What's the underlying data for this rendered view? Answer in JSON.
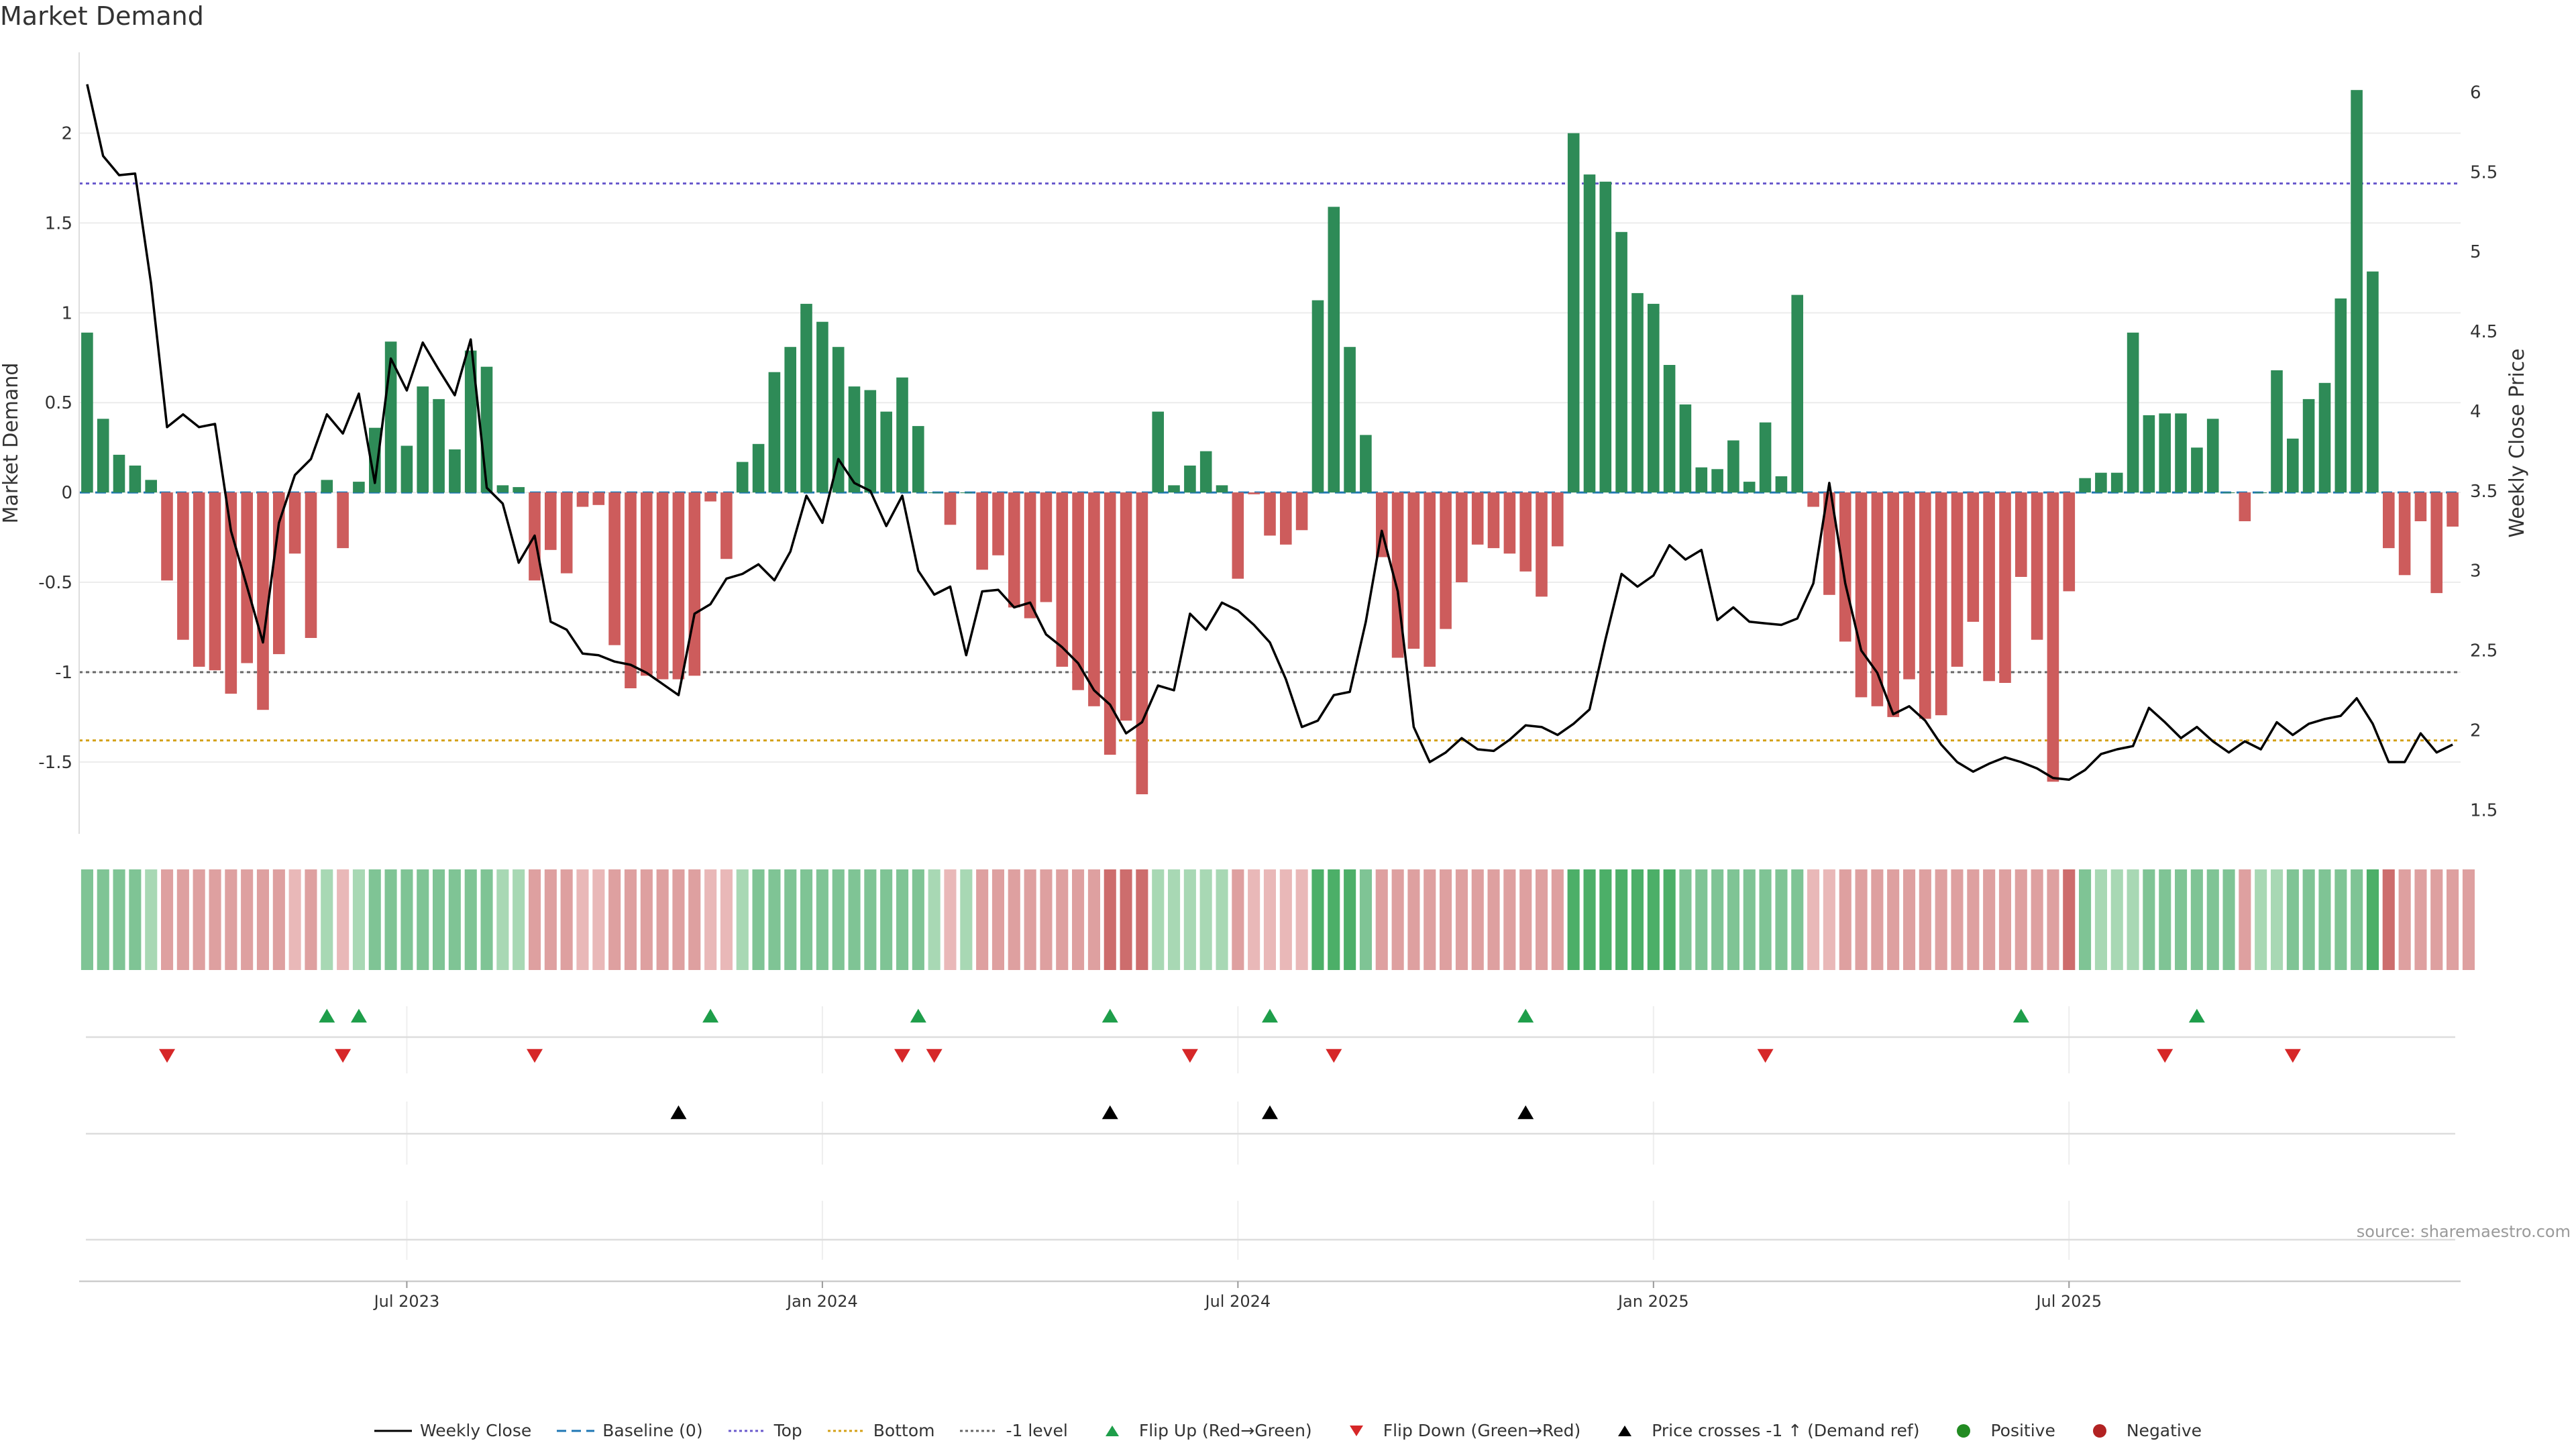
{
  "title": "Market Demand",
  "source": "source: sharemaestro.com",
  "colors": {
    "positive": "#2e8b57",
    "negative": "#cd5c5c",
    "line": "#000000",
    "top": "#6a5acd",
    "bottom": "#d4a017",
    "minus1": "#666666",
    "baseline": "#1f77b4",
    "flip_up": "#1e9e4a",
    "flip_down": "#d62728",
    "cross": "#000000",
    "dot_pos": "#228b22",
    "dot_neg": "#b22222"
  },
  "chart_data": {
    "type": "bar",
    "ylabel": "Market Demand",
    "y2label": "Weekly Close Price",
    "ylim": [
      -1.9,
      2.45
    ],
    "y2lim": [
      1.35,
      6.25
    ],
    "yticks": [
      "2",
      "1.5",
      "1",
      "0.5",
      "0",
      "-0.5",
      "-1",
      "-1.5"
    ],
    "ytick_values": [
      2,
      1.5,
      1,
      0.5,
      0,
      -0.5,
      -1,
      -1.5
    ],
    "y2ticks": [
      "6",
      "5.5",
      "5",
      "4.5",
      "4",
      "3.5",
      "3",
      "2.5",
      "2",
      "1.5"
    ],
    "y2tick_values": [
      6,
      5.5,
      5,
      4.5,
      4,
      3.5,
      3,
      2.5,
      2,
      1.5
    ],
    "xticks": [
      "Jul 2023",
      "Jan 2024",
      "Jul 2024",
      "Jan 2025",
      "Jul 2025"
    ],
    "xtick_week_index": [
      20.5,
      46.5,
      72.5,
      98.5,
      124.5
    ],
    "top_level": 1.72,
    "bottom_level": -1.38,
    "minus1_level": -1,
    "demand": [
      0.89,
      0.41,
      0.21,
      0.15,
      0.07,
      -0.49,
      -0.82,
      -0.97,
      -0.99,
      -1.12,
      -0.95,
      -1.21,
      -0.9,
      -0.34,
      -0.81,
      0.07,
      -0.31,
      0.06,
      0.36,
      0.84,
      0.26,
      0.59,
      0.52,
      0.24,
      0.79,
      0.7,
      0.04,
      0.03,
      -0.49,
      -0.32,
      -0.45,
      -0.08,
      -0.07,
      -0.85,
      -1.09,
      -1.02,
      -1.04,
      -1.04,
      -1.02,
      -0.05,
      -0.37,
      0.17,
      0.27,
      0.67,
      0.81,
      1.05,
      0.95,
      0.81,
      0.59,
      0.57,
      0.45,
      0.64,
      0.37,
      0.0,
      -0.18,
      0.0,
      -0.43,
      -0.35,
      -0.64,
      -0.7,
      -0.61,
      -0.97,
      -1.1,
      -1.19,
      -1.46,
      -1.27,
      -1.68,
      0.45,
      0.04,
      0.15,
      0.23,
      0.04,
      -0.48,
      -0.01,
      -0.24,
      -0.29,
      -0.21,
      1.07,
      1.59,
      0.81,
      0.32,
      -0.36,
      -0.92,
      -0.87,
      -0.97,
      -0.76,
      -0.5,
      -0.29,
      -0.31,
      -0.34,
      -0.44,
      -0.58,
      -0.3,
      2.0,
      1.77,
      1.73,
      1.45,
      1.11,
      1.05,
      0.71,
      0.49,
      0.14,
      0.13,
      0.29,
      0.06,
      0.39,
      0.09,
      1.1,
      -0.08,
      -0.57,
      -0.83,
      -1.14,
      -1.19,
      -1.25,
      -1.04,
      -1.26,
      -1.24,
      -0.97,
      -0.72,
      -1.05,
      -1.06,
      -0.47,
      -0.82,
      -1.61,
      -0.55,
      0.08,
      0.11,
      0.11,
      0.89,
      0.43,
      0.44,
      0.44,
      0.25,
      0.41,
      0.0,
      -0.16,
      0.0,
      0.68,
      0.3,
      0.52,
      0.61,
      1.08,
      2.24,
      1.23,
      -0.31,
      -0.46,
      -0.16,
      -0.56,
      -0.19
    ],
    "close": [
      6.05,
      5.6,
      5.48,
      5.49,
      4.8,
      3.9,
      3.98,
      3.9,
      3.92,
      3.25,
      2.9,
      2.55,
      3.3,
      3.6,
      3.7,
      3.98,
      3.86,
      4.11,
      3.55,
      4.33,
      4.13,
      4.43,
      4.26,
      4.1,
      4.45,
      3.52,
      3.42,
      3.05,
      3.22,
      2.68,
      2.63,
      2.48,
      2.47,
      2.43,
      2.41,
      2.36,
      2.29,
      2.22,
      2.73,
      2.79,
      2.95,
      2.98,
      3.04,
      2.94,
      3.12,
      3.47,
      3.3,
      3.7,
      3.55,
      3.5,
      3.28,
      3.47,
      3.0,
      2.85,
      2.9,
      2.47,
      2.87,
      2.88,
      2.77,
      2.8,
      2.6,
      2.52,
      2.42,
      2.25,
      2.16,
      1.98,
      2.05,
      2.28,
      2.25,
      2.73,
      2.63,
      2.8,
      2.75,
      2.66,
      2.55,
      2.32,
      2.02,
      2.06,
      2.22,
      2.24,
      2.68,
      3.25,
      2.87,
      2.02,
      1.8,
      1.86,
      1.95,
      1.88,
      1.87,
      1.94,
      2.03,
      2.02,
      1.97,
      2.04,
      2.13,
      2.57,
      2.98,
      2.9,
      2.97,
      3.16,
      3.07,
      3.13,
      2.69,
      2.77,
      2.68,
      2.67,
      2.66,
      2.7,
      2.92,
      3.55,
      2.92,
      2.5,
      2.36,
      2.1,
      2.15,
      2.06,
      1.91,
      1.8,
      1.74,
      1.79,
      1.83,
      1.8,
      1.76,
      1.7,
      1.69,
      1.75,
      1.85,
      1.88,
      1.9,
      2.14,
      2.05,
      1.95,
      2.02,
      1.93,
      1.86,
      1.93,
      1.88,
      2.05,
      1.97,
      2.04,
      2.07,
      2.09,
      2.2,
      2.04,
      1.8,
      1.8,
      1.98,
      1.86,
      1.91
    ],
    "heat_levels": [
      2,
      2,
      2,
      2,
      1,
      2,
      2,
      2,
      2,
      2,
      2,
      2,
      2,
      1,
      2,
      1,
      1,
      1,
      2,
      2,
      2,
      2,
      2,
      2,
      2,
      2,
      1,
      1,
      2,
      2,
      2,
      1,
      1,
      2,
      2,
      2,
      2,
      2,
      2,
      1,
      1,
      1,
      2,
      2,
      2,
      2,
      2,
      2,
      2,
      2,
      2,
      2,
      2,
      1,
      1,
      1,
      2,
      2,
      2,
      2,
      2,
      2,
      2,
      2,
      3,
      3,
      3,
      1,
      1,
      1,
      1,
      1,
      2,
      1,
      1,
      1,
      1,
      3,
      3,
      3,
      2,
      2,
      2,
      2,
      2,
      2,
      2,
      2,
      2,
      2,
      2,
      2,
      2,
      3,
      3,
      3,
      3,
      3,
      3,
      3,
      2,
      2,
      2,
      2,
      2,
      2,
      2,
      2,
      1,
      1,
      2,
      2,
      2,
      2,
      2,
      2,
      2,
      2,
      2,
      2,
      2,
      2,
      2,
      2,
      3,
      2,
      1,
      1,
      1,
      2,
      2,
      2,
      2,
      2,
      2,
      2,
      1,
      1,
      2,
      2,
      2,
      2,
      2,
      3,
      3,
      2,
      2,
      2,
      2,
      2
    ],
    "flip_up_weeks": [
      15,
      17,
      39,
      52,
      64,
      74,
      90,
      121,
      132
    ],
    "flip_down_weeks": [
      5,
      16,
      28,
      51,
      53,
      69,
      78,
      105,
      130,
      138
    ],
    "cross_weeks": [
      37,
      64,
      74,
      90
    ]
  },
  "legend": [
    {
      "key": "weekly_close",
      "label": "Weekly Close",
      "kind": "line",
      "color": "#000000",
      "dash": ""
    },
    {
      "key": "baseline",
      "label": "Baseline (0)",
      "kind": "line",
      "color": "#1f77b4",
      "dash": "14,8"
    },
    {
      "key": "top",
      "label": "Top",
      "kind": "line",
      "color": "#6a5acd",
      "dash": "4,4"
    },
    {
      "key": "bottom",
      "label": "Bottom",
      "kind": "line",
      "color": "#d4a017",
      "dash": "4,4"
    },
    {
      "key": "minus1",
      "label": "-1 level",
      "kind": "line",
      "color": "#666666",
      "dash": "4,4"
    },
    {
      "key": "flip_up",
      "label": "Flip Up (Red→Green)",
      "kind": "tri-up",
      "color": "#1e9e4a"
    },
    {
      "key": "flip_down",
      "label": "Flip Down (Green→Red)",
      "kind": "tri-down",
      "color": "#d62728"
    },
    {
      "key": "cross",
      "label": "Price crosses -1 ↑ (Demand ref)",
      "kind": "tri-up",
      "color": "#000000"
    },
    {
      "key": "positive",
      "label": "Positive",
      "kind": "dot",
      "color": "#228b22"
    },
    {
      "key": "negative",
      "label": "Negative",
      "kind": "dot",
      "color": "#b22222"
    }
  ]
}
